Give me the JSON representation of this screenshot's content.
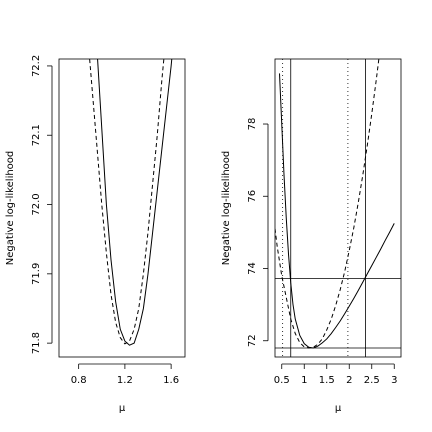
{
  "chart_data": [
    {
      "type": "line",
      "xlabel": "μ",
      "ylabel": "Negative log-likelihood",
      "xlim": [
        0.63,
        1.72
      ],
      "ylim": [
        71.78,
        72.21
      ],
      "x_ticks": [
        0.8,
        1.2,
        1.6
      ],
      "x_tick_labels": [
        "0.8",
        "1.2",
        "1.6"
      ],
      "y_ticks": [
        71.8,
        71.9,
        72.0,
        72.1,
        72.2
      ],
      "y_tick_labels": [
        "71.8",
        "71.9",
        "72.0",
        "72.1",
        "72.2"
      ],
      "series": [
        {
          "style": "solid",
          "x": [
            0.96,
            1.0,
            1.04,
            1.08,
            1.12,
            1.16,
            1.2,
            1.24,
            1.28,
            1.32,
            1.36,
            1.4,
            1.44,
            1.48,
            1.52,
            1.56,
            1.6,
            1.64
          ],
          "y": [
            72.22,
            72.11,
            72.0,
            71.92,
            71.86,
            71.82,
            71.803,
            71.797,
            71.8,
            71.82,
            71.85,
            71.9,
            71.96,
            72.02,
            72.08,
            72.14,
            72.2,
            72.27
          ]
        },
        {
          "style": "dashed",
          "x": [
            0.88,
            0.92,
            0.96,
            1.0,
            1.04,
            1.08,
            1.12,
            1.16,
            1.2,
            1.24,
            1.28,
            1.32,
            1.36,
            1.4,
            1.44,
            1.48,
            1.52,
            1.56,
            1.6
          ],
          "y": [
            72.24,
            72.16,
            72.08,
            72.0,
            71.93,
            71.87,
            71.83,
            71.808,
            71.799,
            71.803,
            71.82,
            71.85,
            71.9,
            71.96,
            72.03,
            72.1,
            72.18,
            72.25,
            72.32
          ]
        }
      ]
    },
    {
      "type": "line",
      "xlabel": "μ",
      "ylabel": "Negative log-likelihood",
      "xlim": [
        0.35,
        3.15
      ],
      "ylim": [
        71.55,
        79.8
      ],
      "x_ticks": [
        0.5,
        1.0,
        1.5,
        2.0,
        2.5,
        3.0
      ],
      "x_tick_labels": [
        "0.5",
        "1",
        "1.5",
        "2",
        "2.5",
        "3"
      ],
      "y_ticks": [
        72,
        74,
        76,
        78
      ],
      "y_tick_labels": [
        "72",
        "74",
        "76",
        "78"
      ],
      "series": [
        {
          "style": "solid",
          "x": [
            0.45,
            0.5,
            0.55,
            0.6,
            0.65,
            0.7,
            0.75,
            0.8,
            0.9,
            1.0,
            1.1,
            1.2,
            1.3,
            1.4,
            1.5,
            1.6,
            1.7,
            1.8,
            1.9,
            2.0,
            2.1,
            2.2,
            2.3,
            2.4,
            2.5,
            2.6,
            2.7,
            2.8,
            2.9,
            3.0
          ],
          "y": [
            79.4,
            78.0,
            76.6,
            75.4,
            74.4,
            73.6,
            73.0,
            72.6,
            72.15,
            71.92,
            71.82,
            71.8,
            71.85,
            71.94,
            72.05,
            72.2,
            72.37,
            72.55,
            72.75,
            72.96,
            73.17,
            73.39,
            73.62,
            73.85,
            74.08,
            74.31,
            74.54,
            74.78,
            75.01,
            75.25
          ]
        },
        {
          "style": "dashed",
          "x": [
            0.35,
            0.4,
            0.5,
            0.6,
            0.7,
            0.8,
            0.9,
            1.0,
            1.1,
            1.2,
            1.3,
            1.4,
            1.5,
            1.6,
            1.7,
            1.8,
            1.9,
            2.0,
            2.1,
            2.2,
            2.3,
            2.4,
            2.5,
            2.6,
            2.7,
            2.8
          ],
          "y": [
            75.1,
            74.6,
            73.8,
            73.2,
            72.6,
            72.2,
            71.95,
            71.83,
            71.8,
            71.82,
            71.9,
            72.05,
            72.3,
            72.6,
            72.98,
            73.42,
            73.92,
            74.5,
            75.12,
            75.82,
            76.58,
            77.4,
            78.28,
            79.22,
            80.22,
            81.3
          ]
        }
      ],
      "hlines": [
        71.8,
        73.72
      ],
      "vlines_solid": [
        0.7,
        2.36
      ],
      "vlines_dotted": [
        0.52,
        1.97
      ]
    }
  ]
}
